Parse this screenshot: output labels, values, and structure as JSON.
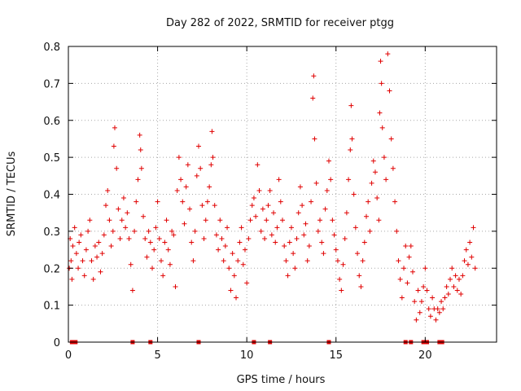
{
  "chart_data": {
    "type": "scatter",
    "title": "Day 282 of 2022, SRMTID for receiver ptgg",
    "xlabel": "GPS time / hours",
    "ylabel": "SRMTID / TECUs",
    "xlim": [
      0,
      24
    ],
    "ylim": [
      0,
      0.8
    ],
    "xticks": [
      0,
      5,
      10,
      15,
      20
    ],
    "xtick_labels": [
      "0",
      "5",
      "10",
      "15",
      "20"
    ],
    "yticks": [
      0,
      0.1,
      0.2,
      0.3,
      0.4,
      0.5,
      0.6,
      0.7,
      0.8
    ],
    "ytick_labels": [
      "0",
      "0.1",
      "0.2",
      "0.3",
      "0.4",
      "0.5",
      "0.6",
      "0.7",
      "0.8"
    ],
    "grid": true,
    "marker": "+",
    "color": "#e00000",
    "series": [
      {
        "name": "SRMTID",
        "points": [
          [
            0.05,
            0.2
          ],
          [
            0.1,
            0.28
          ],
          [
            0.15,
            0.22
          ],
          [
            0.2,
            0.17
          ],
          [
            0.25,
            0.26
          ],
          [
            0.35,
            0.31
          ],
          [
            0.45,
            0.24
          ],
          [
            0.55,
            0.2
          ],
          [
            0.6,
            0.27
          ],
          [
            0.7,
            0.29
          ],
          [
            0.8,
            0.22
          ],
          [
            0.9,
            0.18
          ],
          [
            1.0,
            0.25
          ],
          [
            1.1,
            0.3
          ],
          [
            1.2,
            0.33
          ],
          [
            1.3,
            0.22
          ],
          [
            1.4,
            0.17
          ],
          [
            1.5,
            0.26
          ],
          [
            1.6,
            0.23
          ],
          [
            1.7,
            0.27
          ],
          [
            1.8,
            0.19
          ],
          [
            1.9,
            0.24
          ],
          [
            2.0,
            0.29
          ],
          [
            2.1,
            0.37
          ],
          [
            2.2,
            0.41
          ],
          [
            2.3,
            0.33
          ],
          [
            2.4,
            0.26
          ],
          [
            2.5,
            0.3
          ],
          [
            2.55,
            0.53
          ],
          [
            2.6,
            0.58
          ],
          [
            2.7,
            0.47
          ],
          [
            2.8,
            0.36
          ],
          [
            2.9,
            0.28
          ],
          [
            3.0,
            0.33
          ],
          [
            3.1,
            0.39
          ],
          [
            3.2,
            0.31
          ],
          [
            3.3,
            0.35
          ],
          [
            3.4,
            0.28
          ],
          [
            3.5,
            0.21
          ],
          [
            3.6,
            0.14
          ],
          [
            3.7,
            0.3
          ],
          [
            3.8,
            0.38
          ],
          [
            3.9,
            0.44
          ],
          [
            4.0,
            0.56
          ],
          [
            4.05,
            0.52
          ],
          [
            4.1,
            0.47
          ],
          [
            4.2,
            0.34
          ],
          [
            4.3,
            0.28
          ],
          [
            4.4,
            0.23
          ],
          [
            4.5,
            0.3
          ],
          [
            4.6,
            0.27
          ],
          [
            4.7,
            0.2
          ],
          [
            4.8,
            0.25
          ],
          [
            4.9,
            0.31
          ],
          [
            5.0,
            0.38
          ],
          [
            5.1,
            0.28
          ],
          [
            5.2,
            0.22
          ],
          [
            5.3,
            0.18
          ],
          [
            5.4,
            0.27
          ],
          [
            5.5,
            0.33
          ],
          [
            5.6,
            0.25
          ],
          [
            5.7,
            0.21
          ],
          [
            5.8,
            0.3
          ],
          [
            5.9,
            0.29
          ],
          [
            6.0,
            0.15
          ],
          [
            6.1,
            0.41
          ],
          [
            6.2,
            0.5
          ],
          [
            6.3,
            0.44
          ],
          [
            6.4,
            0.38
          ],
          [
            6.5,
            0.32
          ],
          [
            6.6,
            0.42
          ],
          [
            6.7,
            0.48
          ],
          [
            6.8,
            0.36
          ],
          [
            6.9,
            0.27
          ],
          [
            7.0,
            0.22
          ],
          [
            7.1,
            0.3
          ],
          [
            7.2,
            0.45
          ],
          [
            7.3,
            0.53
          ],
          [
            7.4,
            0.47
          ],
          [
            7.5,
            0.37
          ],
          [
            7.6,
            0.28
          ],
          [
            7.7,
            0.33
          ],
          [
            7.8,
            0.38
          ],
          [
            7.9,
            0.42
          ],
          [
            8.0,
            0.48
          ],
          [
            8.05,
            0.57
          ],
          [
            8.1,
            0.5
          ],
          [
            8.2,
            0.37
          ],
          [
            8.3,
            0.29
          ],
          [
            8.4,
            0.25
          ],
          [
            8.5,
            0.33
          ],
          [
            8.6,
            0.28
          ],
          [
            8.7,
            0.22
          ],
          [
            8.8,
            0.26
          ],
          [
            8.9,
            0.31
          ],
          [
            9.0,
            0.2
          ],
          [
            9.1,
            0.14
          ],
          [
            9.2,
            0.24
          ],
          [
            9.3,
            0.18
          ],
          [
            9.4,
            0.12
          ],
          [
            9.5,
            0.22
          ],
          [
            9.6,
            0.27
          ],
          [
            9.7,
            0.31
          ],
          [
            9.8,
            0.21
          ],
          [
            9.9,
            0.25
          ],
          [
            10.0,
            0.16
          ],
          [
            10.1,
            0.28
          ],
          [
            10.2,
            0.33
          ],
          [
            10.3,
            0.37
          ],
          [
            10.4,
            0.39
          ],
          [
            10.5,
            0.34
          ],
          [
            10.6,
            0.48
          ],
          [
            10.7,
            0.41
          ],
          [
            10.8,
            0.3
          ],
          [
            10.9,
            0.36
          ],
          [
            11.0,
            0.28
          ],
          [
            11.1,
            0.33
          ],
          [
            11.2,
            0.37
          ],
          [
            11.3,
            0.41
          ],
          [
            11.4,
            0.29
          ],
          [
            11.5,
            0.35
          ],
          [
            11.6,
            0.27
          ],
          [
            11.7,
            0.31
          ],
          [
            11.8,
            0.44
          ],
          [
            11.9,
            0.38
          ],
          [
            12.0,
            0.33
          ],
          [
            12.1,
            0.26
          ],
          [
            12.2,
            0.22
          ],
          [
            12.3,
            0.18
          ],
          [
            12.4,
            0.27
          ],
          [
            12.5,
            0.31
          ],
          [
            12.6,
            0.24
          ],
          [
            12.7,
            0.2
          ],
          [
            12.8,
            0.28
          ],
          [
            12.9,
            0.35
          ],
          [
            13.0,
            0.42
          ],
          [
            13.1,
            0.37
          ],
          [
            13.2,
            0.29
          ],
          [
            13.3,
            0.32
          ],
          [
            13.4,
            0.22
          ],
          [
            13.5,
            0.26
          ],
          [
            13.6,
            0.38
          ],
          [
            13.7,
            0.66
          ],
          [
            13.75,
            0.72
          ],
          [
            13.8,
            0.55
          ],
          [
            13.9,
            0.43
          ],
          [
            14.0,
            0.3
          ],
          [
            14.1,
            0.33
          ],
          [
            14.2,
            0.27
          ],
          [
            14.3,
            0.24
          ],
          [
            14.4,
            0.36
          ],
          [
            14.5,
            0.41
          ],
          [
            14.6,
            0.49
          ],
          [
            14.7,
            0.44
          ],
          [
            14.8,
            0.33
          ],
          [
            14.9,
            0.29
          ],
          [
            15.0,
            0.25
          ],
          [
            15.1,
            0.22
          ],
          [
            15.2,
            0.17
          ],
          [
            15.3,
            0.14
          ],
          [
            15.4,
            0.21
          ],
          [
            15.5,
            0.28
          ],
          [
            15.6,
            0.35
          ],
          [
            15.7,
            0.44
          ],
          [
            15.8,
            0.52
          ],
          [
            15.85,
            0.64
          ],
          [
            15.9,
            0.55
          ],
          [
            16.0,
            0.4
          ],
          [
            16.1,
            0.31
          ],
          [
            16.2,
            0.24
          ],
          [
            16.3,
            0.18
          ],
          [
            16.4,
            0.15
          ],
          [
            16.5,
            0.22
          ],
          [
            16.6,
            0.27
          ],
          [
            16.7,
            0.34
          ],
          [
            16.8,
            0.38
          ],
          [
            16.9,
            0.3
          ],
          [
            17.0,
            0.43
          ],
          [
            17.1,
            0.49
          ],
          [
            17.2,
            0.46
          ],
          [
            17.3,
            0.39
          ],
          [
            17.4,
            0.33
          ],
          [
            17.45,
            0.62
          ],
          [
            17.5,
            0.76
          ],
          [
            17.55,
            0.7
          ],
          [
            17.6,
            0.58
          ],
          [
            17.7,
            0.5
          ],
          [
            17.8,
            0.44
          ],
          [
            17.9,
            0.78
          ],
          [
            18.0,
            0.68
          ],
          [
            18.1,
            0.55
          ],
          [
            18.2,
            0.47
          ],
          [
            18.3,
            0.38
          ],
          [
            18.4,
            0.3
          ],
          [
            18.5,
            0.22
          ],
          [
            18.6,
            0.17
          ],
          [
            18.7,
            0.12
          ],
          [
            18.8,
            0.2
          ],
          [
            18.9,
            0.26
          ],
          [
            19.0,
            0.16
          ],
          [
            19.1,
            0.23
          ],
          [
            19.2,
            0.26
          ],
          [
            19.3,
            0.19
          ],
          [
            19.4,
            0.11
          ],
          [
            19.5,
            0.06
          ],
          [
            19.6,
            0.14
          ],
          [
            19.7,
            0.08
          ],
          [
            19.8,
            0.11
          ],
          [
            19.9,
            0.15
          ],
          [
            20.0,
            0.2
          ],
          [
            20.1,
            0.14
          ],
          [
            20.2,
            0.09
          ],
          [
            20.3,
            0.07
          ],
          [
            20.4,
            0.12
          ],
          [
            20.5,
            0.09
          ],
          [
            20.6,
            0.06
          ],
          [
            20.7,
            0.09
          ],
          [
            20.8,
            0.08
          ],
          [
            20.9,
            0.11
          ],
          [
            21.0,
            0.09
          ],
          [
            21.1,
            0.12
          ],
          [
            21.2,
            0.15
          ],
          [
            21.3,
            0.13
          ],
          [
            21.4,
            0.17
          ],
          [
            21.5,
            0.2
          ],
          [
            21.6,
            0.15
          ],
          [
            21.7,
            0.18
          ],
          [
            21.8,
            0.14
          ],
          [
            21.9,
            0.17
          ],
          [
            22.0,
            0.13
          ],
          [
            22.1,
            0.18
          ],
          [
            22.2,
            0.22
          ],
          [
            22.3,
            0.25
          ],
          [
            22.4,
            0.21
          ],
          [
            22.5,
            0.27
          ],
          [
            22.6,
            0.23
          ],
          [
            22.7,
            0.31
          ],
          [
            22.8,
            0.2
          ]
        ]
      }
    ],
    "zero_markers_x": [
      0.2,
      0.4,
      3.6,
      4.6,
      7.3,
      10.4,
      11.3,
      14.6,
      18.9,
      19.2,
      19.9,
      20.0,
      20.1,
      20.8,
      20.95
    ]
  }
}
